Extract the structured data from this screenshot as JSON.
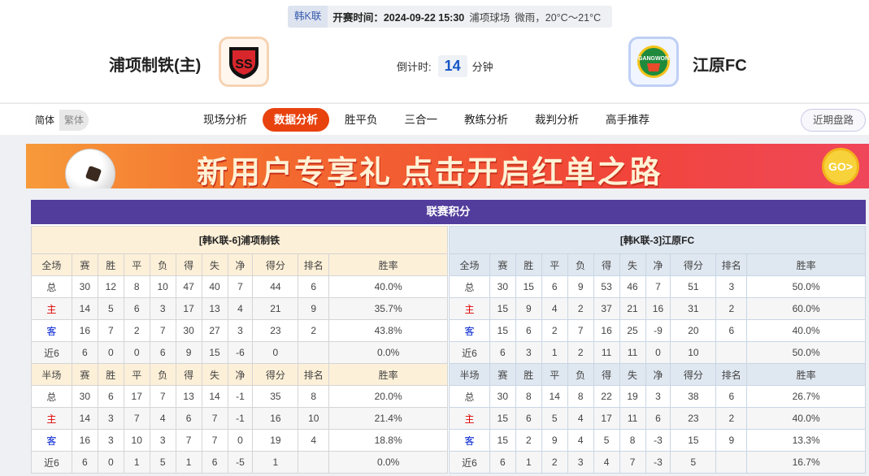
{
  "match": {
    "league": "韩K联",
    "time_label": "开赛时间：2024-09-22 15:30",
    "venue": "浦项球场",
    "weather": "微雨，20°C～21°C"
  },
  "home": {
    "name": "浦项制铁(主)",
    "logo_text": "POHANG"
  },
  "away": {
    "name": "江原FC",
    "logo_text": "GANGWON FC"
  },
  "countdown": {
    "label": "倒计时:",
    "value": "14",
    "unit": "分钟"
  },
  "lang": {
    "simplified": "简体",
    "traditional": "繁体"
  },
  "tabs": [
    "现场分析",
    "数据分析",
    "胜平负",
    "三合一",
    "教练分析",
    "裁判分析",
    "高手推荐"
  ],
  "active_tab": "数据分析",
  "recent_button": "近期盘路",
  "banner": {
    "text": "新用户专享礼 点击开启红单之路",
    "go": "GO>"
  },
  "standings": {
    "title": "联赛积分",
    "columns": [
      "赛",
      "胜",
      "平",
      "负",
      "得",
      "失",
      "净",
      "得分",
      "排名",
      "胜率"
    ],
    "full_label": "全场",
    "half_label": "半场",
    "teams": [
      {
        "header": "[韩K联-6]浦项制铁",
        "full": [
          [
            "总",
            "30",
            "12",
            "8",
            "10",
            "47",
            "40",
            "7",
            "44",
            "6",
            "40.0%"
          ],
          [
            "主",
            "14",
            "5",
            "6",
            "3",
            "17",
            "13",
            "4",
            "21",
            "9",
            "35.7%"
          ],
          [
            "客",
            "16",
            "7",
            "2",
            "7",
            "30",
            "27",
            "3",
            "23",
            "2",
            "43.8%"
          ],
          [
            "近6",
            "6",
            "0",
            "0",
            "6",
            "9",
            "15",
            "-6",
            "0",
            "",
            "0.0%"
          ]
        ],
        "half": [
          [
            "总",
            "30",
            "6",
            "17",
            "7",
            "13",
            "14",
            "-1",
            "35",
            "8",
            "20.0%"
          ],
          [
            "主",
            "14",
            "3",
            "7",
            "4",
            "6",
            "7",
            "-1",
            "16",
            "10",
            "21.4%"
          ],
          [
            "客",
            "16",
            "3",
            "10",
            "3",
            "7",
            "7",
            "0",
            "19",
            "4",
            "18.8%"
          ],
          [
            "近6",
            "6",
            "0",
            "1",
            "5",
            "1",
            "6",
            "-5",
            "1",
            "",
            "0.0%"
          ]
        ]
      },
      {
        "header": "[韩K联-3]江原FC",
        "full": [
          [
            "总",
            "30",
            "15",
            "6",
            "9",
            "53",
            "46",
            "7",
            "51",
            "3",
            "50.0%"
          ],
          [
            "主",
            "15",
            "9",
            "4",
            "2",
            "37",
            "21",
            "16",
            "31",
            "2",
            "60.0%"
          ],
          [
            "客",
            "15",
            "6",
            "2",
            "7",
            "16",
            "25",
            "-9",
            "20",
            "6",
            "40.0%"
          ],
          [
            "近6",
            "6",
            "3",
            "1",
            "2",
            "11",
            "11",
            "0",
            "10",
            "",
            "50.0%"
          ]
        ],
        "half": [
          [
            "总",
            "30",
            "8",
            "14",
            "8",
            "22",
            "19",
            "3",
            "38",
            "6",
            "26.7%"
          ],
          [
            "主",
            "15",
            "6",
            "5",
            "4",
            "17",
            "11",
            "6",
            "23",
            "2",
            "40.0%"
          ],
          [
            "客",
            "15",
            "2",
            "9",
            "4",
            "5",
            "8",
            "-3",
            "15",
            "9",
            "13.3%"
          ],
          [
            "近6",
            "6",
            "1",
            "2",
            "3",
            "4",
            "7",
            "-3",
            "5",
            "",
            "16.7%"
          ]
        ]
      }
    ]
  },
  "colors": {
    "accent": "#e8420f",
    "title_bar": "#523d9c",
    "home_label": "#e00000",
    "away_label": "#0020d0"
  }
}
